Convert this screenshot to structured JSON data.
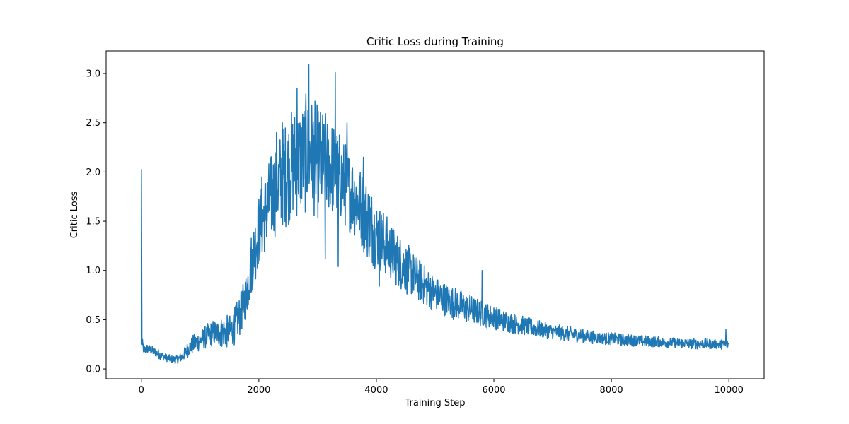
{
  "chart_data": {
    "type": "line",
    "title": "Critic Loss during Training",
    "xlabel": "Training Step",
    "ylabel": "Critic Loss",
    "xlim": [
      -600,
      10600
    ],
    "ylim": [
      -0.1,
      3.23
    ],
    "xticks": [
      0,
      2000,
      4000,
      6000,
      8000,
      10000
    ],
    "xtick_labels": [
      "0",
      "2000",
      "4000",
      "6000",
      "8000",
      "10000"
    ],
    "yticks": [
      0.0,
      0.5,
      1.0,
      1.5,
      2.0,
      2.5,
      3.0
    ],
    "ytick_labels": [
      "0.0",
      "0.5",
      "1.0",
      "1.5",
      "2.0",
      "2.5",
      "3.0"
    ],
    "grid": false,
    "legend": "none",
    "series": [
      {
        "color": "#1f77b4",
        "envelope_x": [
          0,
          10,
          20,
          60,
          100,
          200,
          300,
          400,
          500,
          600,
          700,
          800,
          900,
          1000,
          1100,
          1200,
          1300,
          1400,
          1500,
          1600,
          1700,
          1800,
          1850,
          1900,
          2000,
          2100,
          2200,
          2300,
          2400,
          2500,
          2600,
          2700,
          2800,
          2900,
          3000,
          3100,
          3200,
          3300,
          3400,
          3500,
          3600,
          3700,
          3800,
          3900,
          4000,
          4100,
          4200,
          4300,
          4400,
          4500,
          4600,
          4700,
          4800,
          4900,
          5000,
          5200,
          5400,
          5600,
          5800,
          6000,
          6200,
          6400,
          6600,
          6800,
          7000,
          7200,
          7400,
          7600,
          7800,
          8000,
          8200,
          8400,
          8600,
          8800,
          9000,
          9200,
          9400,
          9600,
          9800,
          10000
        ],
        "envelope_low": [
          2.0,
          0.2,
          0.15,
          0.14,
          0.15,
          0.13,
          0.1,
          0.08,
          0.06,
          0.05,
          0.07,
          0.12,
          0.15,
          0.18,
          0.2,
          0.22,
          0.22,
          0.2,
          0.2,
          0.25,
          0.35,
          0.55,
          0.65,
          0.8,
          1.0,
          1.15,
          1.25,
          1.35,
          1.4,
          1.45,
          1.5,
          1.5,
          1.55,
          1.55,
          1.5,
          1.5,
          1.55,
          1.5,
          1.45,
          1.4,
          1.35,
          1.25,
          1.15,
          1.05,
          1.0,
          0.95,
          0.9,
          0.85,
          0.8,
          0.75,
          0.72,
          0.68,
          0.64,
          0.6,
          0.58,
          0.52,
          0.48,
          0.45,
          0.42,
          0.4,
          0.37,
          0.35,
          0.33,
          0.31,
          0.3,
          0.28,
          0.27,
          0.26,
          0.25,
          0.24,
          0.23,
          0.23,
          0.22,
          0.22,
          0.21,
          0.21,
          0.2,
          0.2,
          0.2,
          0.2
        ],
        "envelope_high": [
          2.03,
          0.35,
          0.3,
          0.24,
          0.26,
          0.23,
          0.2,
          0.16,
          0.14,
          0.14,
          0.18,
          0.3,
          0.36,
          0.4,
          0.45,
          0.5,
          0.52,
          0.55,
          0.55,
          0.65,
          0.8,
          1.05,
          1.35,
          1.5,
          1.8,
          2.0,
          2.2,
          2.35,
          2.5,
          2.6,
          2.7,
          2.75,
          2.8,
          2.8,
          2.7,
          2.65,
          2.6,
          2.5,
          2.4,
          2.3,
          2.2,
          2.1,
          2.0,
          1.9,
          1.75,
          1.65,
          1.55,
          1.45,
          1.38,
          1.3,
          1.22,
          1.15,
          1.08,
          1.02,
          0.95,
          0.88,
          0.82,
          0.76,
          0.7,
          0.65,
          0.6,
          0.56,
          0.52,
          0.49,
          0.46,
          0.44,
          0.42,
          0.4,
          0.38,
          0.37,
          0.36,
          0.35,
          0.34,
          0.33,
          0.32,
          0.32,
          0.31,
          0.31,
          0.3,
          0.3
        ],
        "spikes": [
          {
            "x": 0,
            "y": 2.03
          },
          {
            "x": 2050,
            "y": 1.95
          },
          {
            "x": 2300,
            "y": 2.4
          },
          {
            "x": 2400,
            "y": 2.5
          },
          {
            "x": 2650,
            "y": 2.85
          },
          {
            "x": 2850,
            "y": 3.09
          },
          {
            "x": 3300,
            "y": 3.01
          },
          {
            "x": 3500,
            "y": 2.5
          },
          {
            "x": 3780,
            "y": 2.15
          },
          {
            "x": 3130,
            "y": 1.12
          },
          {
            "x": 3350,
            "y": 1.04
          },
          {
            "x": 4050,
            "y": 0.84
          },
          {
            "x": 5800,
            "y": 1.0
          },
          {
            "x": 9950,
            "y": 0.4
          },
          {
            "x": 10000,
            "y": 0.25
          }
        ]
      }
    ]
  }
}
